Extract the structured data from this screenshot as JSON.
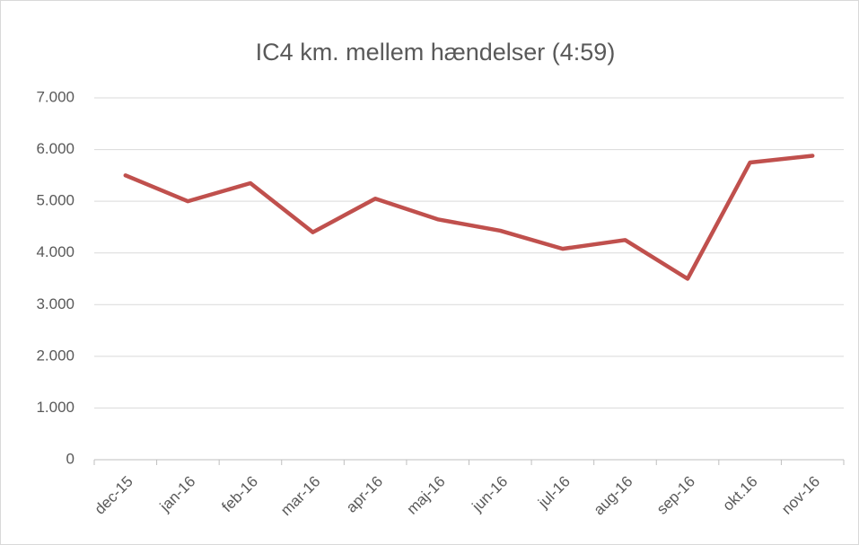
{
  "chart_data": {
    "type": "line",
    "title": "IC4 km. mellem hændelser (4:59)",
    "categories": [
      "dec-15",
      "jan-16",
      "feb-16",
      "mar-16",
      "apr-16",
      "maj-16",
      "jun-16",
      "jul-16",
      "aug-16",
      "sep-16",
      "okt.16",
      "nov-16"
    ],
    "series": [
      {
        "name": "IC4",
        "color": "#c0504d",
        "values": [
          5500,
          5000,
          5350,
          4400,
          5050,
          4650,
          4430,
          4080,
          4250,
          3500,
          5750,
          5880
        ]
      }
    ],
    "ylim": [
      0,
      7000
    ],
    "yticks": [
      0,
      {
        "value": 1000,
        "label": "1.000"
      },
      {
        "value": 2000,
        "label": "2.000"
      },
      {
        "value": 3000,
        "label": "3.000"
      },
      {
        "value": 4000,
        "label": "4.000"
      },
      {
        "value": 5000,
        "label": "5.000"
      },
      {
        "value": 6000,
        "label": "6.000"
      },
      {
        "value": 7000,
        "label": "7.000"
      }
    ],
    "grid": true
  }
}
